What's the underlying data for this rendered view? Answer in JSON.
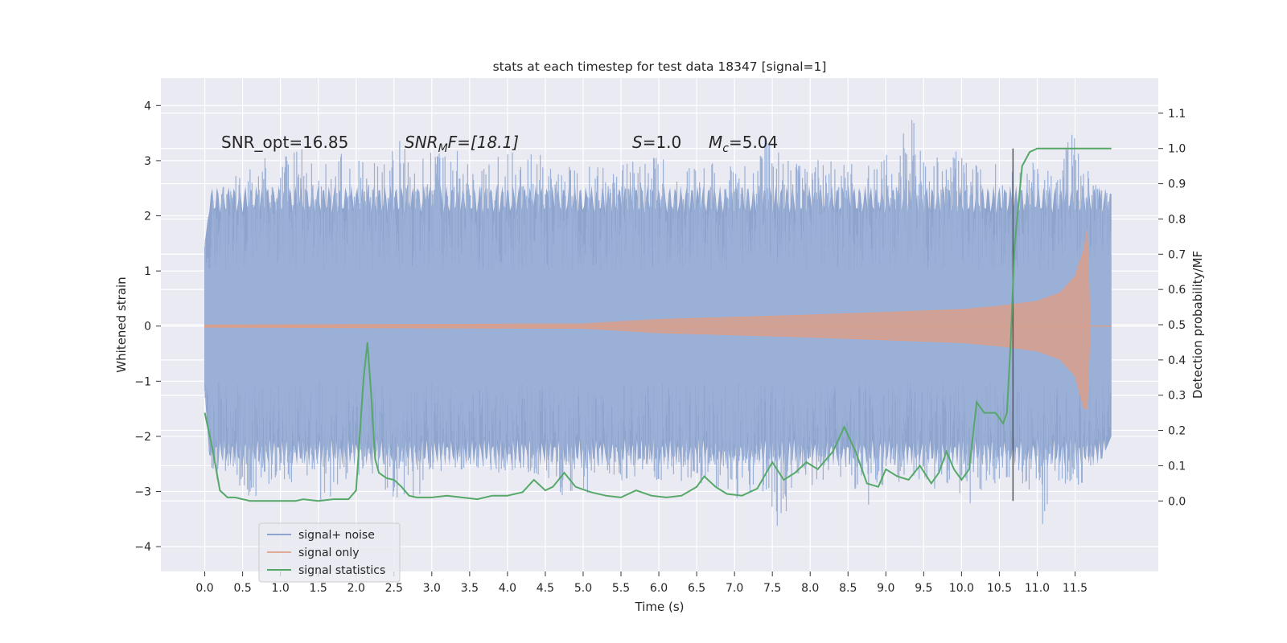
{
  "chart_data": {
    "type": "line",
    "title": "stats at each timestep for test data 18347 [signal=1]",
    "xlabel": "Time (s)",
    "ylabel_left": "Whitened strain",
    "ylabel_right": "Detection probability/MF",
    "xlim": [
      -0.58,
      12.6
    ],
    "ylim_left": [
      -4.45,
      4.5
    ],
    "ylim_right": [
      -0.2,
      1.2
    ],
    "x_ticks": [
      0.0,
      0.5,
      1.0,
      1.5,
      2.0,
      2.5,
      3.0,
      3.5,
      4.0,
      4.5,
      5.0,
      5.5,
      6.0,
      6.5,
      7.0,
      7.5,
      8.0,
      8.5,
      9.0,
      9.5,
      10.0,
      10.5,
      11.0,
      11.5
    ],
    "x_tick_labels": [
      "0.0",
      "0.5",
      "1.0",
      "1.5",
      "2.0",
      "2.5",
      "3.0",
      "3.5",
      "4.0",
      "4.5",
      "5.0",
      "5.5",
      "6.0",
      "6.5",
      "7.0",
      "7.5",
      "8.0",
      "8.5",
      "9.0",
      "9.5",
      "10.0",
      "10.5",
      "11.0",
      "11.5"
    ],
    "y_left_ticks": [
      -4,
      -3,
      -2,
      -1,
      0,
      1,
      2,
      3,
      4
    ],
    "y_left_tick_labels": [
      "−4",
      "−3",
      "−2",
      "−1",
      "0",
      "1",
      "2",
      "3",
      "4"
    ],
    "y_right_ticks": [
      0.0,
      0.1,
      0.2,
      0.3,
      0.4,
      0.5,
      0.6,
      0.7,
      0.8,
      0.9,
      1.0,
      1.1
    ],
    "y_right_tick_labels": [
      "0.0",
      "0.1",
      "0.2",
      "0.3",
      "0.4",
      "0.5",
      "0.6",
      "0.7",
      "0.8",
      "0.9",
      "1.0",
      "1.1"
    ],
    "grid": true,
    "legend_position": "bottom-left",
    "annotations": {
      "snr_opt": "SNR_opt=16.85",
      "snr_mf_sym": "SNR",
      "snr_mf_sub": "M",
      "snr_mf_rest": "F=[18.1]",
      "s_sym": "S",
      "s_rest": "=1.0",
      "mc_sym": "M",
      "mc_sub": "c",
      "mc_rest": "=5.04"
    },
    "vline_x": 10.68,
    "series": [
      {
        "name": "signal+ noise",
        "color": "#8fa4cc",
        "axis": "left",
        "x_range": [
          0.0,
          11.98
        ],
        "upper_envelope": [
          [
            0.0,
            1.5
          ],
          [
            0.1,
            2.6
          ],
          [
            0.3,
            2.7
          ],
          [
            0.5,
            2.8
          ],
          [
            0.7,
            3.3
          ],
          [
            0.9,
            2.9
          ],
          [
            1.1,
            3.2
          ],
          [
            1.3,
            3.3
          ],
          [
            1.5,
            2.8
          ],
          [
            1.7,
            3.2
          ],
          [
            2.0,
            3.0
          ],
          [
            2.3,
            3.0
          ],
          [
            2.6,
            3.4
          ],
          [
            2.8,
            3.1
          ],
          [
            3.1,
            3.2
          ],
          [
            3.3,
            3.3
          ],
          [
            3.6,
            2.8
          ],
          [
            3.9,
            3.1
          ],
          [
            4.2,
            3.2
          ],
          [
            4.5,
            3.1
          ],
          [
            4.8,
            2.9
          ],
          [
            5.1,
            3.0
          ],
          [
            5.4,
            2.9
          ],
          [
            5.7,
            3.0
          ],
          [
            6.0,
            3.1
          ],
          [
            6.3,
            2.8
          ],
          [
            6.6,
            3.0
          ],
          [
            6.9,
            2.9
          ],
          [
            7.2,
            3.0
          ],
          [
            7.4,
            3.6
          ],
          [
            7.7,
            3.0
          ],
          [
            8.0,
            3.1
          ],
          [
            8.3,
            3.0
          ],
          [
            8.6,
            3.1
          ],
          [
            8.9,
            2.9
          ],
          [
            9.2,
            3.5
          ],
          [
            9.37,
            4.1
          ],
          [
            9.5,
            3.0
          ],
          [
            9.7,
            3.1
          ],
          [
            9.9,
            3.2
          ],
          [
            10.1,
            3.0
          ],
          [
            10.3,
            2.9
          ],
          [
            10.5,
            3.0
          ],
          [
            10.7,
            2.8
          ],
          [
            10.9,
            3.0
          ],
          [
            11.1,
            2.9
          ],
          [
            11.3,
            3.0
          ],
          [
            11.45,
            3.8
          ],
          [
            11.6,
            3.0
          ],
          [
            11.8,
            2.6
          ],
          [
            11.98,
            2.4
          ]
        ],
        "lower_envelope": [
          [
            0.0,
            -1.2
          ],
          [
            0.1,
            -3.1
          ],
          [
            0.3,
            -2.6
          ],
          [
            0.5,
            -3.0
          ],
          [
            0.7,
            -3.2
          ],
          [
            0.9,
            -2.8
          ],
          [
            1.1,
            -2.9
          ],
          [
            1.3,
            -2.7
          ],
          [
            1.6,
            -3.3
          ],
          [
            1.8,
            -2.9
          ],
          [
            2.0,
            -2.7
          ],
          [
            2.3,
            -2.8
          ],
          [
            2.6,
            -3.4
          ],
          [
            2.9,
            -3.0
          ],
          [
            3.2,
            -2.7
          ],
          [
            3.5,
            -2.6
          ],
          [
            3.8,
            -2.8
          ],
          [
            4.1,
            -2.6
          ],
          [
            4.4,
            -2.7
          ],
          [
            4.6,
            -3.0
          ],
          [
            4.9,
            -3.3
          ],
          [
            5.2,
            -2.8
          ],
          [
            5.5,
            -2.9
          ],
          [
            5.8,
            -2.7
          ],
          [
            6.1,
            -2.9
          ],
          [
            6.4,
            -2.8
          ],
          [
            6.7,
            -2.9
          ],
          [
            6.9,
            -3.0
          ],
          [
            7.1,
            -3.3
          ],
          [
            7.3,
            -2.9
          ],
          [
            7.5,
            -3.3
          ],
          [
            7.6,
            -4.0
          ],
          [
            7.8,
            -2.8
          ],
          [
            8.1,
            -3.0
          ],
          [
            8.4,
            -2.8
          ],
          [
            8.7,
            -3.4
          ],
          [
            9.0,
            -3.0
          ],
          [
            9.3,
            -2.7
          ],
          [
            9.6,
            -3.0
          ],
          [
            9.9,
            -2.8
          ],
          [
            10.1,
            -3.5
          ],
          [
            10.3,
            -2.9
          ],
          [
            10.6,
            -2.8
          ],
          [
            10.9,
            -3.0
          ],
          [
            11.1,
            -3.7
          ],
          [
            11.3,
            -2.9
          ],
          [
            11.6,
            -2.9
          ],
          [
            11.8,
            -2.6
          ],
          [
            11.98,
            -2.0
          ]
        ],
        "dense_band_left": [
          -1.3,
          1.3
        ]
      },
      {
        "name": "signal only",
        "color": "#d99f8c",
        "axis": "left",
        "envelope_upper": [
          [
            0.0,
            0.02
          ],
          [
            5.0,
            0.04
          ],
          [
            6.0,
            0.12
          ],
          [
            7.0,
            0.16
          ],
          [
            8.0,
            0.2
          ],
          [
            9.0,
            0.25
          ],
          [
            10.0,
            0.3
          ],
          [
            10.5,
            0.36
          ],
          [
            11.0,
            0.45
          ],
          [
            11.3,
            0.6
          ],
          [
            11.5,
            0.9
          ],
          [
            11.62,
            1.4
          ],
          [
            11.66,
            1.75
          ],
          [
            11.7,
            0.0
          ],
          [
            11.98,
            0.0
          ]
        ],
        "envelope_lower": [
          [
            0.0,
            -0.02
          ],
          [
            5.0,
            -0.04
          ],
          [
            6.0,
            -0.12
          ],
          [
            7.0,
            -0.16
          ],
          [
            8.0,
            -0.2
          ],
          [
            9.0,
            -0.25
          ],
          [
            10.0,
            -0.3
          ],
          [
            10.5,
            -0.36
          ],
          [
            11.0,
            -0.45
          ],
          [
            11.3,
            -0.6
          ],
          [
            11.5,
            -0.9
          ],
          [
            11.62,
            -1.5
          ],
          [
            11.66,
            -1.5
          ],
          [
            11.7,
            0.0
          ],
          [
            11.98,
            0.0
          ]
        ]
      },
      {
        "name": "signal statistics",
        "color": "#55a868",
        "axis": "right",
        "points": [
          [
            0.0,
            0.25
          ],
          [
            0.1,
            0.15
          ],
          [
            0.2,
            0.03
          ],
          [
            0.3,
            0.01
          ],
          [
            0.4,
            0.01
          ],
          [
            0.5,
            0.005
          ],
          [
            0.6,
            0.0
          ],
          [
            0.8,
            0.0
          ],
          [
            1.0,
            0.0
          ],
          [
            1.2,
            0.0
          ],
          [
            1.3,
            0.005
          ],
          [
            1.5,
            0.0
          ],
          [
            1.7,
            0.005
          ],
          [
            1.9,
            0.005
          ],
          [
            2.0,
            0.03
          ],
          [
            2.05,
            0.19
          ],
          [
            2.1,
            0.35
          ],
          [
            2.15,
            0.45
          ],
          [
            2.2,
            0.3
          ],
          [
            2.25,
            0.12
          ],
          [
            2.3,
            0.08
          ],
          [
            2.4,
            0.065
          ],
          [
            2.5,
            0.06
          ],
          [
            2.6,
            0.04
          ],
          [
            2.7,
            0.015
          ],
          [
            2.8,
            0.01
          ],
          [
            3.0,
            0.01
          ],
          [
            3.2,
            0.015
          ],
          [
            3.4,
            0.01
          ],
          [
            3.6,
            0.005
          ],
          [
            3.8,
            0.015
          ],
          [
            4.0,
            0.015
          ],
          [
            4.2,
            0.025
          ],
          [
            4.35,
            0.06
          ],
          [
            4.5,
            0.03
          ],
          [
            4.6,
            0.04
          ],
          [
            4.75,
            0.08
          ],
          [
            4.9,
            0.04
          ],
          [
            5.1,
            0.025
          ],
          [
            5.3,
            0.015
          ],
          [
            5.5,
            0.01
          ],
          [
            5.7,
            0.03
          ],
          [
            5.9,
            0.015
          ],
          [
            6.1,
            0.01
          ],
          [
            6.3,
            0.015
          ],
          [
            6.5,
            0.04
          ],
          [
            6.6,
            0.07
          ],
          [
            6.75,
            0.04
          ],
          [
            6.9,
            0.02
          ],
          [
            7.1,
            0.015
          ],
          [
            7.3,
            0.035
          ],
          [
            7.5,
            0.11
          ],
          [
            7.65,
            0.06
          ],
          [
            7.8,
            0.08
          ],
          [
            7.95,
            0.11
          ],
          [
            8.1,
            0.09
          ],
          [
            8.3,
            0.14
          ],
          [
            8.45,
            0.21
          ],
          [
            8.6,
            0.14
          ],
          [
            8.75,
            0.05
          ],
          [
            8.9,
            0.04
          ],
          [
            9.0,
            0.09
          ],
          [
            9.15,
            0.07
          ],
          [
            9.3,
            0.06
          ],
          [
            9.45,
            0.1
          ],
          [
            9.6,
            0.05
          ],
          [
            9.7,
            0.08
          ],
          [
            9.8,
            0.14
          ],
          [
            9.9,
            0.09
          ],
          [
            10.0,
            0.06
          ],
          [
            10.1,
            0.09
          ],
          [
            10.2,
            0.28
          ],
          [
            10.3,
            0.25
          ],
          [
            10.45,
            0.25
          ],
          [
            10.55,
            0.22
          ],
          [
            10.6,
            0.25
          ],
          [
            10.65,
            0.45
          ],
          [
            10.7,
            0.72
          ],
          [
            10.8,
            0.95
          ],
          [
            10.9,
            0.99
          ],
          [
            11.0,
            1.0
          ],
          [
            11.5,
            1.0
          ],
          [
            11.98,
            1.0
          ]
        ]
      }
    ]
  }
}
